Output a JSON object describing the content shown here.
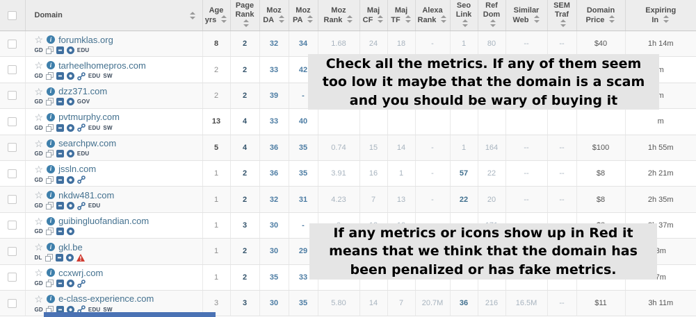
{
  "table": {
    "columns": [
      {
        "key": "domain",
        "line1": "Domain",
        "line2": ""
      },
      {
        "key": "age",
        "line1": "Age",
        "line2": "yrs"
      },
      {
        "key": "pagerank",
        "line1": "Page",
        "line2": "Rank"
      },
      {
        "key": "moz_da",
        "line1": "Moz",
        "line2": "DA"
      },
      {
        "key": "moz_pa",
        "line1": "Moz",
        "line2": "PA"
      },
      {
        "key": "moz_rank",
        "line1": "Moz",
        "line2": "Rank"
      },
      {
        "key": "maj_cf",
        "line1": "Maj",
        "line2": "CF"
      },
      {
        "key": "maj_tf",
        "line1": "Maj",
        "line2": "TF"
      },
      {
        "key": "alexa",
        "line1": "Alexa",
        "line2": "Rank"
      },
      {
        "key": "seo_link",
        "line1": "Seo",
        "line2": "Link"
      },
      {
        "key": "ref_dom",
        "line1": "Ref",
        "line2": "Dom"
      },
      {
        "key": "similar_web",
        "line1": "Similar",
        "line2": "Web"
      },
      {
        "key": "sem_traf",
        "line1": "SEM",
        "line2": "Traf"
      },
      {
        "key": "price",
        "line1": "Domain",
        "line2": "Price"
      },
      {
        "key": "expiring",
        "line1": "Expiring",
        "line2": "In"
      }
    ],
    "rows": [
      {
        "domain": "forumklas.org",
        "source": "GD",
        "icons": [
          "copy",
          "square",
          "circle"
        ],
        "tags": [
          "EDU"
        ],
        "warning": false,
        "values": [
          "8",
          "2",
          "32",
          "34",
          "1.68",
          "24",
          "18",
          "-",
          "1",
          "80",
          "--",
          "--",
          "$40",
          "1h 14m"
        ]
      },
      {
        "domain": "tarheelhomepros.com",
        "source": "GD",
        "icons": [
          "copy",
          "square",
          "circle",
          "link"
        ],
        "tags": [
          "EDU",
          "SW"
        ],
        "warning": false,
        "values": [
          "2",
          "2",
          "33",
          "42",
          "",
          "",
          "",
          "",
          "",
          "",
          "",
          "",
          "",
          "m"
        ]
      },
      {
        "domain": "dzz371.com",
        "source": "GD",
        "icons": [
          "copy",
          "square",
          "circle"
        ],
        "tags": [
          "GOV"
        ],
        "warning": false,
        "values": [
          "2",
          "2",
          "39",
          "-",
          "",
          "",
          "",
          "",
          "",
          "",
          "",
          "",
          "",
          "m"
        ]
      },
      {
        "domain": "pvtmurphy.com",
        "source": "GD",
        "icons": [
          "copy",
          "square",
          "circle",
          "link"
        ],
        "tags": [
          "EDU",
          "SW"
        ],
        "warning": false,
        "values": [
          "13",
          "4",
          "33",
          "40",
          "",
          "",
          "",
          "",
          "",
          "",
          "",
          "",
          "",
          "m"
        ]
      },
      {
        "domain": "searchpw.com",
        "source": "GD",
        "icons": [
          "copy",
          "square",
          "circle"
        ],
        "tags": [
          "EDU"
        ],
        "warning": false,
        "values": [
          "5",
          "4",
          "36",
          "35",
          "0.74",
          "15",
          "14",
          "-",
          "1",
          "164",
          "--",
          "--",
          "$100",
          "1h 55m"
        ]
      },
      {
        "domain": "jssln.com",
        "source": "GD",
        "icons": [
          "copy",
          "square",
          "circle",
          "link"
        ],
        "tags": [],
        "warning": false,
        "values": [
          "1",
          "2",
          "36",
          "35",
          "3.91",
          "16",
          "1",
          "-",
          "57",
          "22",
          "--",
          "--",
          "$8",
          "2h 21m"
        ]
      },
      {
        "domain": "nkdw481.com",
        "source": "GD",
        "icons": [
          "copy",
          "square",
          "circle",
          "link"
        ],
        "tags": [
          "EDU"
        ],
        "warning": false,
        "values": [
          "1",
          "2",
          "32",
          "31",
          "4.23",
          "7",
          "13",
          "-",
          "22",
          "20",
          "--",
          "--",
          "$8",
          "2h 35m"
        ]
      },
      {
        "domain": "guibingluofandian.com",
        "source": "GD",
        "icons": [
          "copy",
          "square",
          "circle"
        ],
        "tags": [],
        "warning": false,
        "values": [
          "1",
          "3",
          "30",
          "-",
          "0",
          "12",
          "10",
          "-",
          "-",
          "171",
          "--",
          "--",
          "$8",
          "2h 37m"
        ]
      },
      {
        "domain": "gkl.be",
        "source": "DL",
        "icons": [
          "copy",
          "square",
          "circle"
        ],
        "tags": [],
        "warning": true,
        "values": [
          "1",
          "2",
          "30",
          "29",
          "",
          "",
          "",
          "",
          "",
          "",
          "",
          "",
          "",
          "3m"
        ]
      },
      {
        "domain": "ccxwrj.com",
        "source": "GD",
        "icons": [
          "copy",
          "square",
          "circle",
          "link"
        ],
        "tags": [],
        "warning": false,
        "values": [
          "1",
          "2",
          "35",
          "33",
          "",
          "",
          "",
          "",
          "",
          "",
          "",
          "",
          "",
          "7m"
        ]
      },
      {
        "domain": "e-class-experience.com",
        "source": "GD",
        "icons": [
          "copy",
          "square",
          "circle",
          "link"
        ],
        "tags": [
          "EDU",
          "SW"
        ],
        "warning": false,
        "values": [
          "3",
          "3",
          "30",
          "35",
          "5.80",
          "14",
          "7",
          "20.7M",
          "36",
          "216",
          "16.5M",
          "--",
          "$11",
          "3h 11m"
        ]
      }
    ]
  },
  "overlays": [
    {
      "text": "Check all the metrics. If any of them seem\ntoo low it maybe that the domain is a scam\nand you should be wary of buying it"
    },
    {
      "text": "If any metrics or icons show up in Red it\nmeans that we think that the domain has\nbeen penalized or has fake metrics."
    }
  ],
  "colors": {
    "annotation_bg": "#e5e5e5",
    "icon_blue": "#3f6f9f",
    "warning_red": "#cf3a30",
    "bottom_strip_blue": "#4a72b4"
  }
}
